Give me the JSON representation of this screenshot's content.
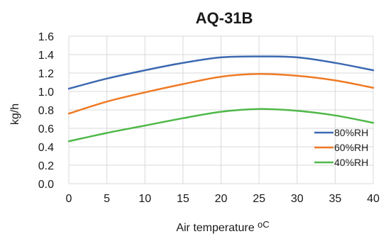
{
  "chart_data": {
    "type": "line",
    "title": "AQ-31B",
    "xlabel": "Air temperature ",
    "xlabel_unit": "oC",
    "ylabel": "kg/h",
    "x": [
      0,
      5,
      10,
      15,
      20,
      25,
      30,
      35,
      40
    ],
    "xlim": [
      0,
      40
    ],
    "ylim": [
      0.0,
      1.6
    ],
    "x_ticks": [
      "0",
      "5",
      "10",
      "15",
      "20",
      "25",
      "30",
      "35",
      "40"
    ],
    "y_ticks": [
      "0.0",
      "0.2",
      "0.4",
      "0.6",
      "0.8",
      "1.0",
      "1.2",
      "1.4",
      "1.6"
    ],
    "grid": true,
    "legend_position": "bottom-right",
    "series": [
      {
        "name": "80%RH",
        "color": "#3c69b1",
        "values": [
          1.03,
          1.14,
          1.23,
          1.31,
          1.37,
          1.38,
          1.37,
          1.31,
          1.23
        ]
      },
      {
        "name": "60%RH",
        "color": "#ef7a25",
        "values": [
          0.76,
          0.89,
          0.99,
          1.08,
          1.16,
          1.19,
          1.17,
          1.12,
          1.04
        ]
      },
      {
        "name": "40%RH",
        "color": "#4fb848",
        "values": [
          0.46,
          0.55,
          0.63,
          0.71,
          0.78,
          0.81,
          0.79,
          0.74,
          0.66
        ]
      }
    ]
  }
}
